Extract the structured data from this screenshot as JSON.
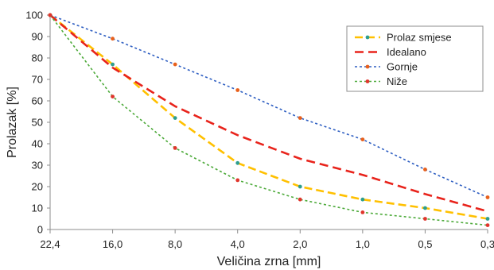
{
  "chart_data": {
    "type": "line",
    "xlabel": "Veličina zrna [mm]",
    "ylabel": "Prolazak [%]",
    "categories": [
      "22,4",
      "16,0",
      "8,0",
      "4,0",
      "2,0",
      "1,0",
      "0,5",
      "0,3"
    ],
    "ylim": [
      0,
      100
    ],
    "yticks": [
      0,
      10,
      20,
      30,
      40,
      50,
      60,
      70,
      80,
      90,
      100
    ],
    "grid": false,
    "legend_position": "top-right",
    "series": [
      {
        "name": "Prolaz smjese",
        "values": [
          100,
          77,
          52,
          31,
          20,
          14,
          10,
          5
        ],
        "color": "#FFC000",
        "marker_color": "#2E9E8E",
        "dash": "10,5",
        "width": 2.6,
        "marker_r": 2.4
      },
      {
        "name": "Idealano",
        "values": [
          100,
          75.5,
          57.5,
          44,
          33,
          25.5,
          16.5,
          8.5
        ],
        "color": "#E8231B",
        "marker_color": "#E8231B",
        "dash": "11,6",
        "width": 2.6,
        "marker_r": 0
      },
      {
        "name": "Gornje",
        "values": [
          100,
          89,
          77,
          65,
          52,
          42,
          28,
          15
        ],
        "color": "#2F5FC2",
        "marker_color": "#E8601C",
        "dash": "3,3",
        "width": 1.6,
        "marker_r": 2.4
      },
      {
        "name": "Niže",
        "values": [
          100,
          62,
          38,
          23,
          14,
          8,
          5,
          2
        ],
        "color": "#4DAA3A",
        "marker_color": "#E0352C",
        "dash": "3,3",
        "width": 1.6,
        "marker_r": 2.4
      }
    ]
  }
}
